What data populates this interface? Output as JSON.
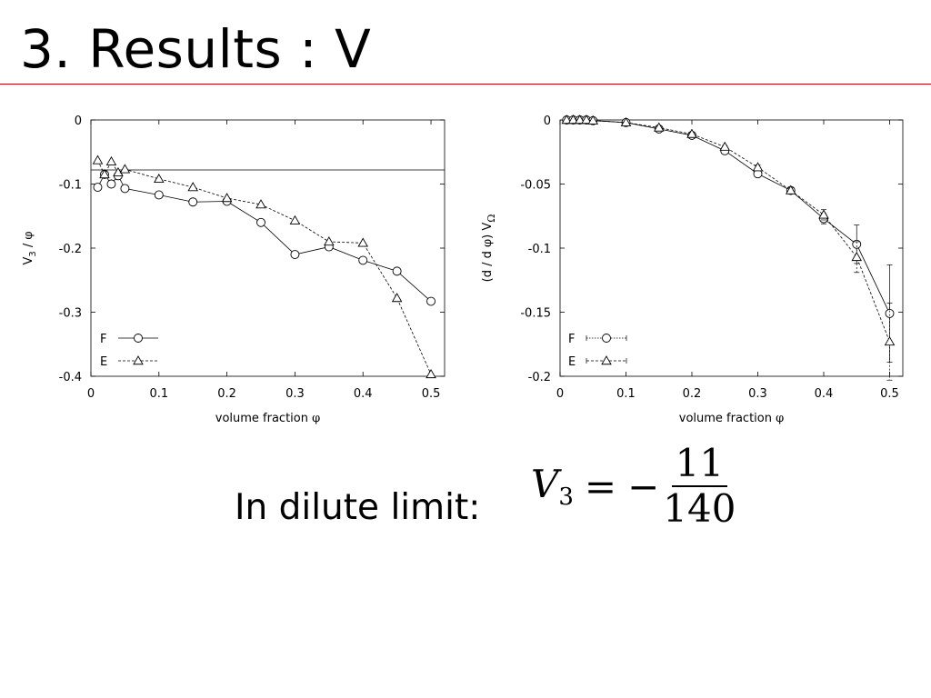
{
  "slide": {
    "title": "3. Results : V"
  },
  "dilute_label": "In dilute limit:",
  "formula": {
    "lhs": "V",
    "lhs_sub": "3",
    "eq": "=",
    "sign": "−",
    "numerator": "11",
    "denominator": "140"
  },
  "chart_data": [
    {
      "type": "line",
      "xlabel": "volume fraction φ",
      "ylabel": "V3 / φ",
      "xlim": [
        0,
        0.52
      ],
      "ylim": [
        -0.4,
        0
      ],
      "xticks": [
        0,
        0.1,
        0.2,
        0.3,
        0.4,
        0.5
      ],
      "xtick_labels": [
        "0",
        "0.1",
        "0.2",
        "0.3",
        "0.4",
        "0.5"
      ],
      "yticks": [
        0,
        -0.1,
        -0.2,
        -0.3,
        -0.4
      ],
      "ytick_labels": [
        "0",
        "-0.1",
        "-0.2",
        "-0.3",
        "-0.4"
      ],
      "grid": false,
      "legend_position": "bottom-left",
      "reference_line": -0.078,
      "series": [
        {
          "name": "F",
          "marker": "circle",
          "dash": "solid",
          "x": [
            0.01,
            0.02,
            0.03,
            0.04,
            0.05,
            0.1,
            0.15,
            0.2,
            0.25,
            0.3,
            0.35,
            0.4,
            0.45,
            0.5
          ],
          "y": [
            -0.105,
            -0.085,
            -0.1,
            -0.087,
            -0.107,
            -0.117,
            -0.128,
            -0.127,
            -0.16,
            -0.21,
            -0.198,
            -0.219,
            -0.236,
            -0.283
          ]
        },
        {
          "name": "E",
          "marker": "triangle",
          "dash": "dashed",
          "x": [
            0.01,
            0.02,
            0.03,
            0.04,
            0.05,
            0.1,
            0.15,
            0.2,
            0.25,
            0.3,
            0.35,
            0.4,
            0.45,
            0.5
          ],
          "y": [
            -0.063,
            -0.085,
            -0.065,
            -0.082,
            -0.077,
            -0.092,
            -0.105,
            -0.122,
            -0.132,
            -0.157,
            -0.19,
            -0.192,
            -0.278,
            -0.397
          ]
        }
      ]
    },
    {
      "type": "line",
      "xlabel": "volume fraction φ",
      "ylabel": "(d / d φ) VΩ",
      "xlim": [
        0,
        0.52
      ],
      "ylim": [
        -0.2,
        0
      ],
      "xticks": [
        0,
        0.1,
        0.2,
        0.3,
        0.4,
        0.5
      ],
      "xtick_labels": [
        "0",
        "0.1",
        "0.2",
        "0.3",
        "0.4",
        "0.5"
      ],
      "yticks": [
        0,
        -0.05,
        -0.1,
        -0.15,
        -0.2
      ],
      "ytick_labels": [
        "0",
        "-0.05",
        "-0.1",
        "-0.15",
        "-0.2"
      ],
      "grid": false,
      "legend_position": "bottom-left",
      "series": [
        {
          "name": "F",
          "marker": "circle",
          "dash": "solid",
          "x": [
            0.01,
            0.02,
            0.03,
            0.04,
            0.05,
            0.1,
            0.15,
            0.2,
            0.25,
            0.3,
            0.35,
            0.4,
            0.45,
            0.5
          ],
          "y": [
            0,
            0,
            0,
            0,
            -0.0005,
            -0.002,
            -0.007,
            -0.012,
            -0.024,
            -0.042,
            -0.055,
            -0.077,
            -0.097,
            -0.151
          ],
          "err": [
            0,
            0,
            0,
            0,
            0,
            0,
            0,
            0,
            0.001,
            0.002,
            0.002,
            0.004,
            0.015,
            0.038
          ]
        },
        {
          "name": "E",
          "marker": "triangle",
          "dash": "dashed",
          "x": [
            0.01,
            0.02,
            0.03,
            0.04,
            0.05,
            0.1,
            0.15,
            0.2,
            0.25,
            0.3,
            0.35,
            0.4,
            0.45,
            0.5
          ],
          "y": [
            0,
            0,
            0,
            0,
            -0.0005,
            -0.002,
            -0.006,
            -0.011,
            -0.021,
            -0.037,
            -0.055,
            -0.074,
            -0.107,
            -0.173
          ],
          "err": [
            0,
            0,
            0,
            0,
            0,
            0,
            0,
            0,
            0.001,
            0.002,
            0.002,
            0.004,
            0.012,
            0.03
          ]
        }
      ]
    }
  ]
}
